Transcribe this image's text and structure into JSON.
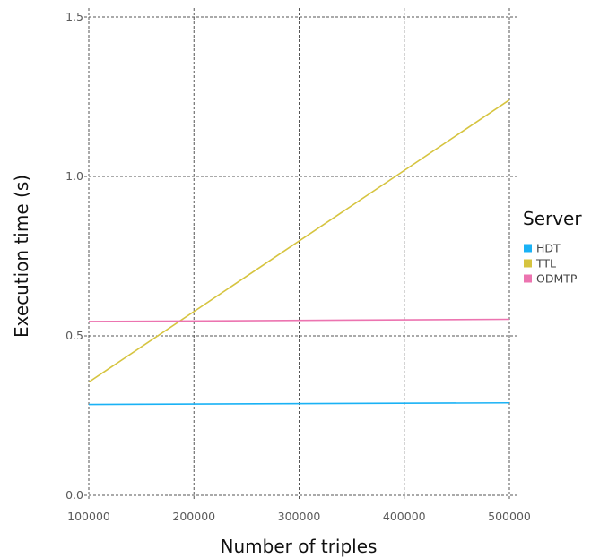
{
  "chart_data": {
    "type": "line",
    "title": "",
    "xlabel": "Number of triples",
    "ylabel": "Execution time (s)",
    "xlim": [
      100000,
      500000
    ],
    "ylim": [
      0.0,
      1.5
    ],
    "xticks": [
      100000,
      200000,
      300000,
      400000,
      500000
    ],
    "xtick_labels": [
      "100000",
      "200000",
      "300000",
      "400000",
      "500000"
    ],
    "yticks": [
      0.0,
      0.5,
      1.0,
      1.5
    ],
    "ytick_labels": [
      "0.0",
      "0.5",
      "1.0",
      "1.5"
    ],
    "grid": true,
    "legend_title": "Server",
    "legend_position": "right",
    "series": [
      {
        "name": "HDT",
        "color": "#1ab2f5",
        "x": [
          100000,
          500000
        ],
        "y": [
          0.285,
          0.29
        ]
      },
      {
        "name": "TTL",
        "color": "#d6c43f",
        "x": [
          100000,
          500000
        ],
        "y": [
          0.355,
          1.24
        ]
      },
      {
        "name": "ODMTP",
        "color": "#ec74b0",
        "x": [
          100000,
          500000
        ],
        "y": [
          0.545,
          0.552
        ]
      }
    ]
  }
}
